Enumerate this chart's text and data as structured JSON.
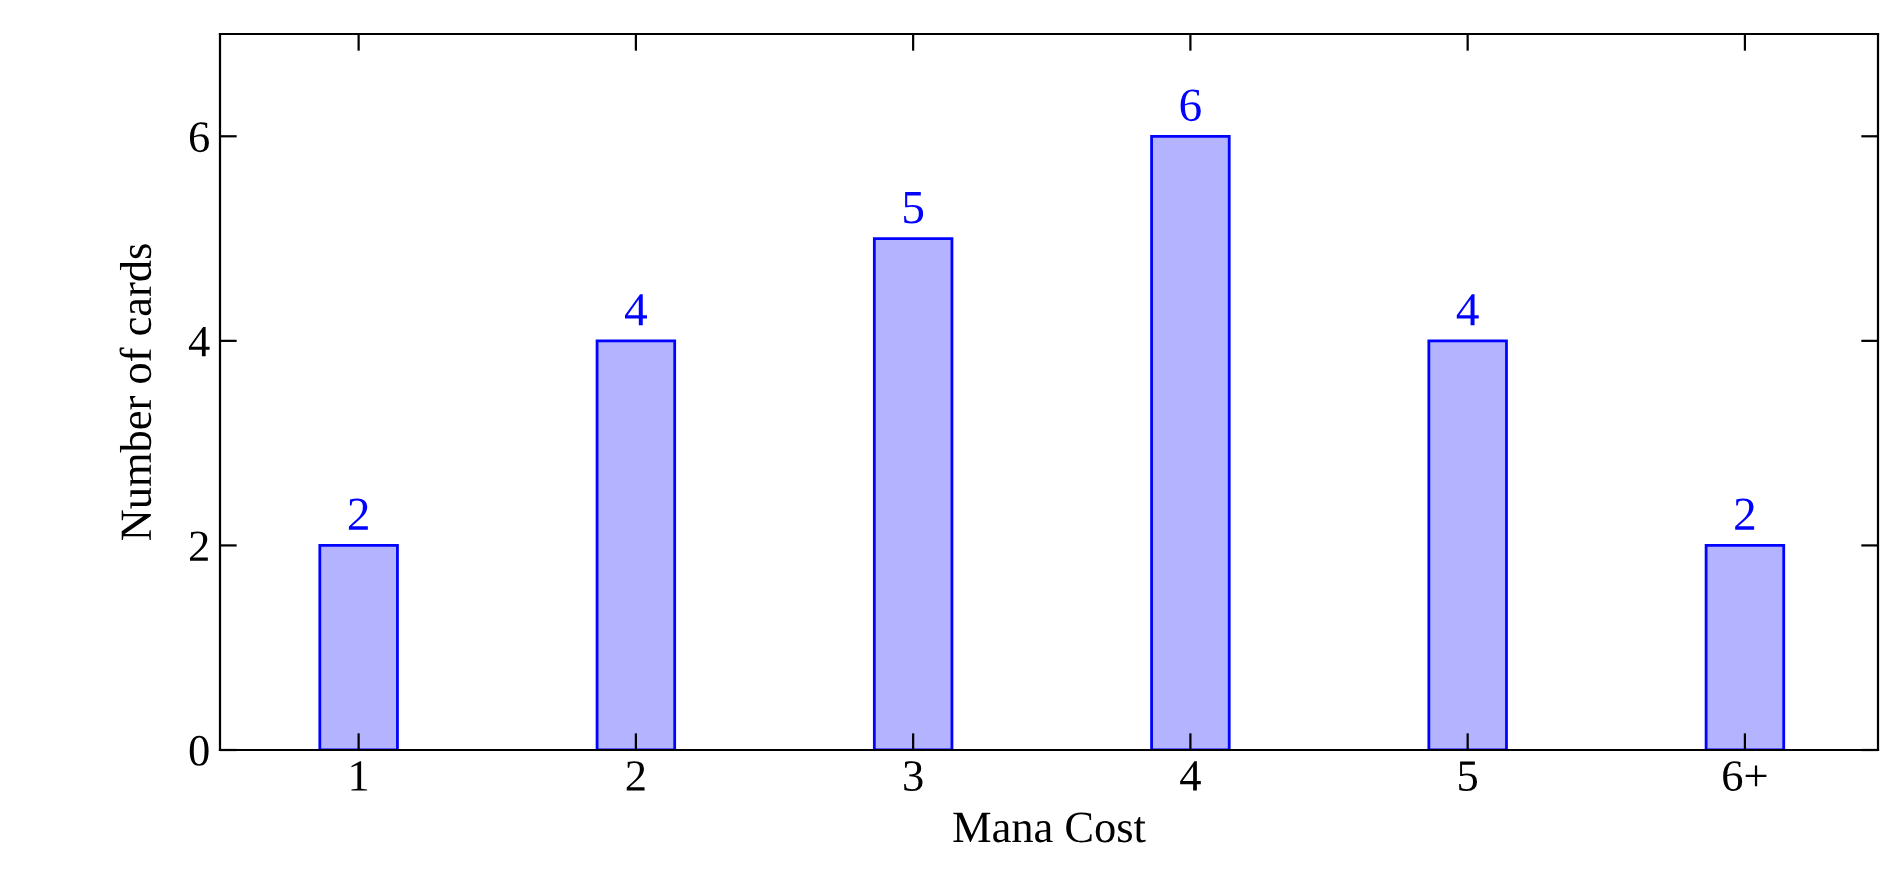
{
  "chart_data": {
    "type": "bar",
    "xlabel": "Mana Cost",
    "ylabel": "Number of cards",
    "categories": [
      "1",
      "2",
      "3",
      "4",
      "5",
      "6+"
    ],
    "series": [
      {
        "color": "#b3b3ff",
        "values": [
          2,
          4,
          5,
          6,
          4,
          2
        ]
      }
    ],
    "ylim": [
      0,
      7
    ],
    "yticks": [
      0,
      2,
      4,
      6
    ],
    "data_labels": true,
    "grid": false
  }
}
